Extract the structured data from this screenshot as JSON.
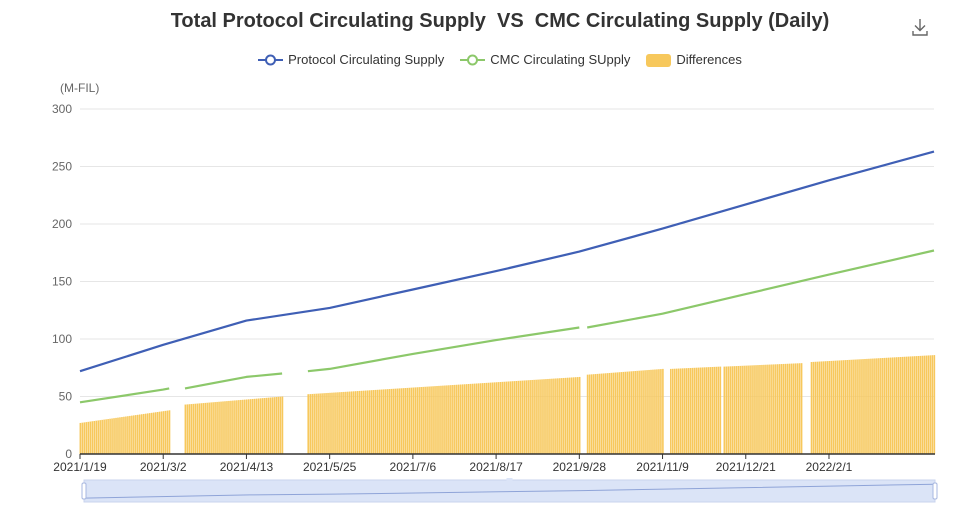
{
  "title": "Total Protocol Circulating Supply  VS  CMC Circulating Supply (Daily)",
  "toolbar": {
    "download_icon": "download-icon"
  },
  "legend": [
    {
      "label": "Protocol Circulating Supply",
      "color": "#3f5fb5",
      "icon": "line-circle"
    },
    {
      "label": "CMC Circulating SUpply",
      "color": "#8cc86a",
      "icon": "line-circle"
    },
    {
      "label": "Differences",
      "color": "#f7c85c",
      "icon": "rect"
    }
  ],
  "chart_data": {
    "type": "bar+line",
    "yunit": "(M-FIL)",
    "ylim": [
      0,
      300
    ],
    "yticks": [
      0,
      50,
      100,
      150,
      200,
      250,
      300
    ],
    "xrange": [
      "2021-01-19",
      "2022-03-26"
    ],
    "xticks": [
      "2021/1/19",
      "2021/3/2",
      "2021/4/13",
      "2021/5/25",
      "2021/7/6",
      "2021/8/17",
      "2021/9/28",
      "2021/11/9",
      "2021/12/21",
      "2022/2/1"
    ],
    "grid": true,
    "legend_position": "top-center",
    "series": [
      {
        "name": "Protocol Circulating Supply",
        "type": "line",
        "color": "#3f5fb5",
        "points": [
          [
            "2021-01-19",
            72
          ],
          [
            "2021-03-02",
            95
          ],
          [
            "2021-04-13",
            116
          ],
          [
            "2021-05-25",
            127
          ],
          [
            "2021-07-06",
            143
          ],
          [
            "2021-08-17",
            159
          ],
          [
            "2021-09-28",
            176
          ],
          [
            "2021-11-09",
            196
          ],
          [
            "2021-12-21",
            217
          ],
          [
            "2022-02-01",
            238
          ],
          [
            "2022-03-26",
            263
          ]
        ]
      },
      {
        "name": "CMC Circulating SUpply",
        "type": "line",
        "color": "#8cc86a",
        "segments": [
          [
            [
              "2021-01-19",
              45
            ],
            [
              "2021-03-02",
              56
            ],
            [
              "2021-03-05",
              57
            ]
          ],
          [
            [
              "2021-03-13",
              57
            ],
            [
              "2021-04-13",
              67
            ],
            [
              "2021-05-01",
              70
            ]
          ],
          [
            [
              "2021-05-14",
              72
            ],
            [
              "2021-05-25",
              74
            ],
            [
              "2021-07-06",
              87
            ],
            [
              "2021-08-17",
              99
            ],
            [
              "2021-09-28",
              110
            ]
          ],
          [
            [
              "2021-10-02",
              110
            ],
            [
              "2021-11-09",
              122
            ],
            [
              "2021-12-21",
              139
            ],
            [
              "2022-02-01",
              156
            ],
            [
              "2022-03-26",
              177
            ]
          ]
        ]
      },
      {
        "name": "Differences",
        "type": "bar",
        "color": "#f7c85c",
        "segments": [
          [
            [
              "2021-01-19",
              27
            ],
            [
              "2021-03-05",
              38
            ]
          ],
          [
            [
              "2021-03-13",
              43
            ],
            [
              "2021-05-01",
              50
            ]
          ],
          [
            [
              "2021-05-14",
              52
            ],
            [
              "2021-09-28",
              67
            ]
          ],
          [
            [
              "2021-10-02",
              69
            ],
            [
              "2021-11-09",
              74
            ]
          ],
          [
            [
              "2021-11-13",
              74
            ],
            [
              "2021-12-08",
              76
            ]
          ],
          [
            [
              "2021-12-10",
              76
            ],
            [
              "2022-01-18",
              79
            ]
          ],
          [
            [
              "2022-01-23",
              80
            ],
            [
              "2022-03-26",
              86
            ]
          ]
        ]
      }
    ]
  },
  "datazoom": {
    "start": 0,
    "end": 1
  }
}
